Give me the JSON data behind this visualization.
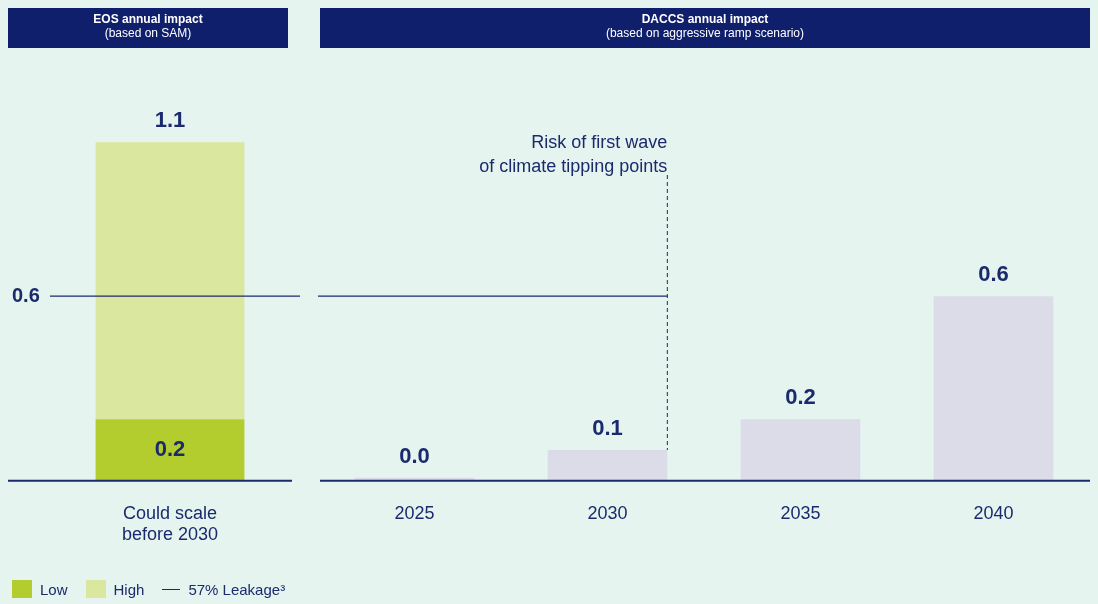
{
  "chart_data": [
    {
      "type": "bar",
      "title": "EOS annual impact",
      "subtitle": "(based on SAM)",
      "categories": [
        "Could scale before 2030"
      ],
      "stacked": true,
      "legend": "bottom left",
      "annotations": [
        "0.6"
      ],
      "series": [
        {
          "name": "Low",
          "color": "#b3cc2e",
          "values": [
            0.2
          ],
          "value_labels": [
            "0.2"
          ]
        },
        {
          "name": "High",
          "color": "#d9e89e",
          "values": [
            0.9
          ],
          "value_labels": [
            null
          ]
        }
      ],
      "totals": [
        "1.1"
      ],
      "ref_lines": [
        {
          "axis": "y",
          "value": 0.6,
          "label": "57% Leakage³",
          "color": "#1a2a6c"
        }
      ]
    },
    {
      "type": "bar",
      "title": "DACCS annual impact",
      "subtitle": "(based on aggressive ramp scenario)",
      "categories": [
        "2025",
        "2030",
        "2035",
        "2040"
      ],
      "values": [
        0.01,
        0.1,
        0.2,
        0.6
      ],
      "color": "#dcdce8",
      "value_labels": [
        "0.0",
        "0.1",
        "0.2",
        "0.6"
      ],
      "ref_lines": [
        {
          "axis": "y",
          "value": 0.6,
          "color": "#1a2a6c"
        },
        {
          "axis": "x",
          "value": "2030",
          "label": "Risk of first wave of climate tipping points",
          "color": "#1a2a6c",
          "line_style": "dashed"
        }
      ]
    }
  ]
}
